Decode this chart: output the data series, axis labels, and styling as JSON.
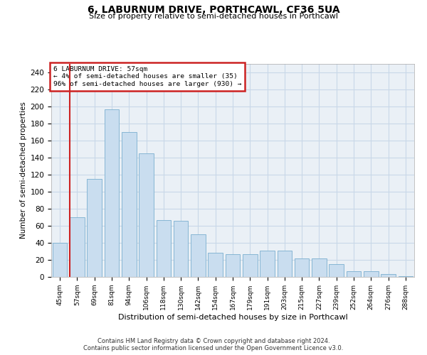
{
  "title": "6, LABURNUM DRIVE, PORTHCAWL, CF36 5UA",
  "subtitle": "Size of property relative to semi-detached houses in Porthcawl",
  "xlabel": "Distribution of semi-detached houses by size in Porthcawl",
  "ylabel": "Number of semi-detached properties",
  "footer_line1": "Contains HM Land Registry data © Crown copyright and database right 2024.",
  "footer_line2": "Contains public sector information licensed under the Open Government Licence v3.0.",
  "annotation_line1": "6 LABURNUM DRIVE: 57sqm",
  "annotation_line2": "← 4% of semi-detached houses are smaller (35)",
  "annotation_line3": "96% of semi-detached houses are larger (930) →",
  "bar_labels": [
    "45sqm",
    "57sqm",
    "69sqm",
    "81sqm",
    "94sqm",
    "106sqm",
    "118sqm",
    "130sqm",
    "142sqm",
    "154sqm",
    "167sqm",
    "179sqm",
    "191sqm",
    "203sqm",
    "215sqm",
    "227sqm",
    "239sqm",
    "252sqm",
    "264sqm",
    "276sqm",
    "288sqm"
  ],
  "bar_values": [
    40,
    70,
    115,
    197,
    170,
    145,
    67,
    66,
    50,
    28,
    27,
    27,
    31,
    31,
    22,
    22,
    15,
    7,
    7,
    3,
    1
  ],
  "highlight_bin_index": 1,
  "bar_color": "#c9ddef",
  "bar_edge_color": "#7aafcf",
  "highlight_color": "#cc2222",
  "grid_color": "#c8d8e8",
  "background_color": "#eaf0f6",
  "ylim": [
    0,
    250
  ],
  "yticks": [
    0,
    20,
    40,
    60,
    80,
    100,
    120,
    140,
    160,
    180,
    200,
    220,
    240
  ]
}
